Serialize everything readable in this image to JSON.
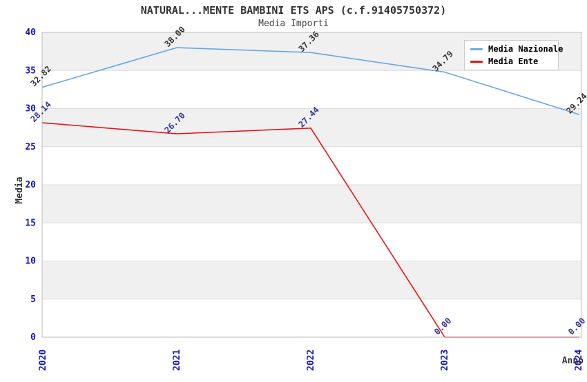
{
  "header": {
    "title": "NATURAL...MENTE BAMBINI ETS APS (c.f.91405750372)",
    "subtitle": "Media Importi"
  },
  "chart_data": {
    "type": "line",
    "title": "NATURAL...MENTE BAMBINI ETS APS (c.f.91405750372)",
    "subtitle": "Media Importi",
    "categories": [
      "2020",
      "2021",
      "2022",
      "2023",
      "2024"
    ],
    "series": [
      {
        "name": "Media Nazionale",
        "color": "#68a7e2",
        "label_color": "#333333",
        "values": [
          32.82,
          38.0,
          37.36,
          34.79,
          29.24
        ]
      },
      {
        "name": "Media Ente",
        "color": "#ee1111",
        "label_color": "#333399",
        "values": [
          28.14,
          26.7,
          27.44,
          0.0,
          0.0
        ]
      }
    ],
    "xlabel": "Anno",
    "ylabel": "Media",
    "ylim": [
      0,
      40
    ],
    "ytick_step": 5,
    "yticks": [
      0,
      5,
      10,
      15,
      20,
      25,
      30,
      35,
      40
    ],
    "grid": "horizontal-bands",
    "band_colors": [
      "#ffffff",
      "#f0f0f0"
    ],
    "gridline_color": "#dcdcdc",
    "border_color": "#bbbbbb",
    "tick_label_color": "#1414cc",
    "point_label_format": "0.00",
    "legend_position": "top-right"
  }
}
